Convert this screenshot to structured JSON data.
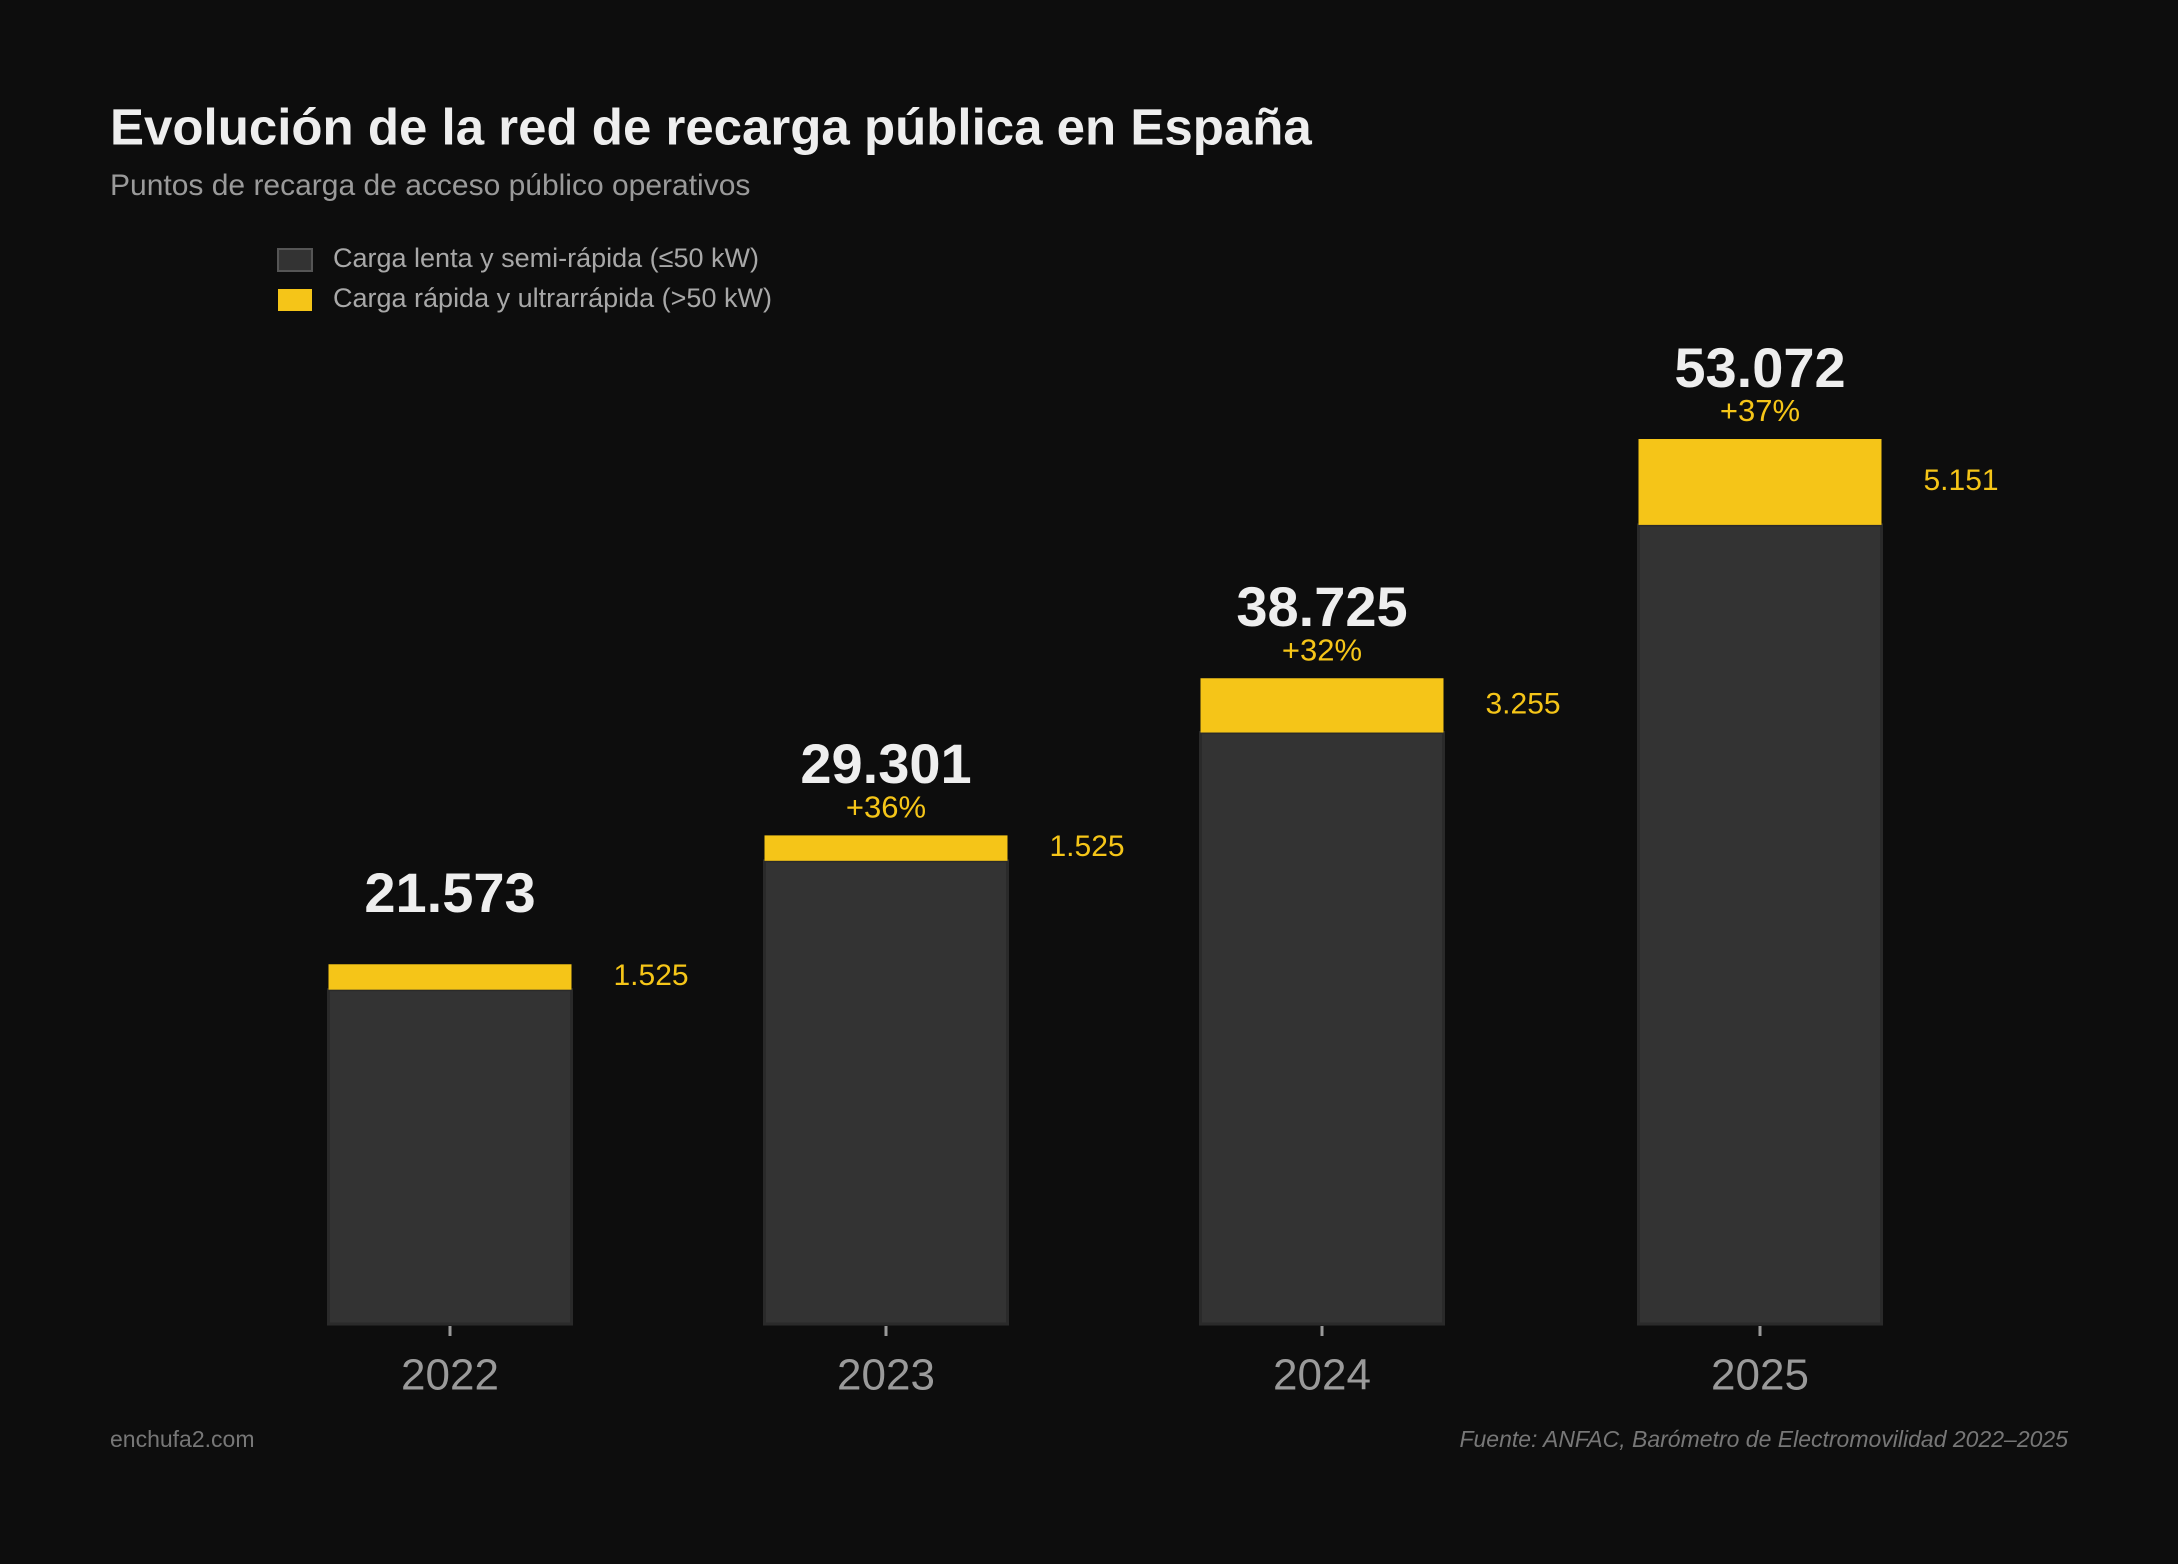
{
  "chart_data": {
    "type": "stacked_bar",
    "title": "Evolución de la red de recarga pública en España",
    "subtitle": "Puntos de recarga de acceso público operativos",
    "categories": [
      "2022",
      "2023",
      "2024",
      "2025"
    ],
    "series": [
      {
        "name": "Carga lenta y semi-rápida (≤50 kW)",
        "color": "#333333",
        "values": [
          20048,
          27776,
          35470,
          47921
        ]
      },
      {
        "name": "Carga rápida y ultrarrápida (>50 kW)",
        "color": "#f5c518",
        "values": [
          1525,
          1525,
          3255,
          5151
        ],
        "value_labels": [
          "1.525",
          "1.525",
          "3.255",
          "5.151"
        ]
      }
    ],
    "totals": {
      "values": [
        21573,
        29301,
        38725,
        53072
      ],
      "value_labels": [
        "21.573",
        "29.301",
        "38.725",
        "53.072"
      ]
    },
    "growth": {
      "values": [
        null,
        36,
        32,
        37
      ],
      "value_labels": [
        null,
        "+36%",
        "+32%",
        "+37%"
      ]
    },
    "credit": "enchufa2.com",
    "source": "Fuente: ANFAC, Barómetro de Electromovilidad 2022–2025"
  }
}
